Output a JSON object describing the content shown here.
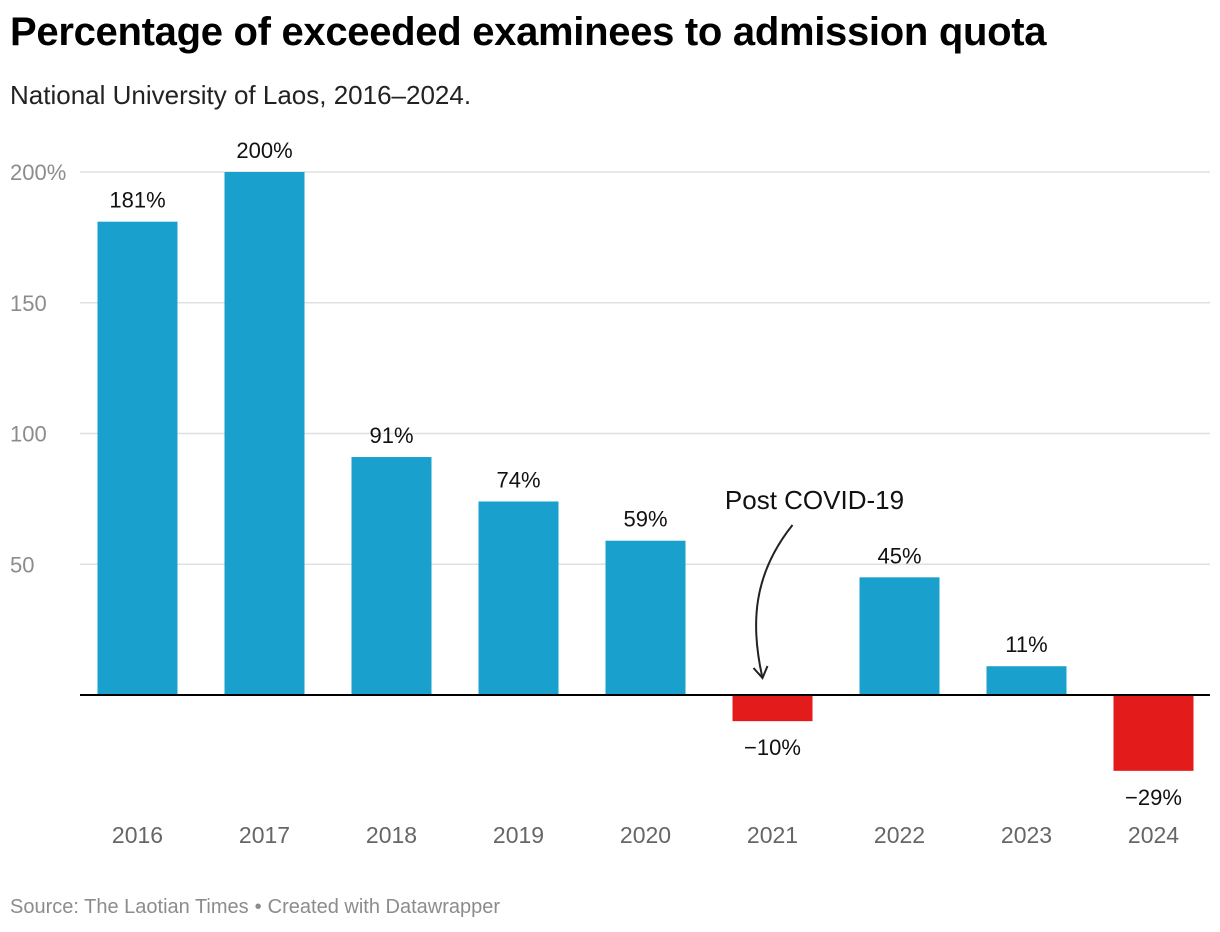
{
  "header": {
    "title": "Percentage of exceeded examinees to admission quota",
    "subtitle": "National University of Laos, 2016–2024."
  },
  "footer": {
    "source": "Source: The Laotian Times",
    "separator": "•",
    "credit": "Created with Datawrapper"
  },
  "colors": {
    "positive": "#1aa0cc",
    "negative": "#e31b1b",
    "grid": "#e0e0e0",
    "axis_text": "#8c8c8c",
    "baseline": "#000000"
  },
  "chart_data": {
    "type": "bar",
    "title": "Percentage of exceeded examinees to admission quota",
    "subtitle": "National University of Laos, 2016–2024.",
    "categories": [
      "2016",
      "2017",
      "2018",
      "2019",
      "2020",
      "2021",
      "2022",
      "2023",
      "2024"
    ],
    "values": [
      181,
      200,
      91,
      74,
      59,
      -10,
      45,
      11,
      -29
    ],
    "value_labels": [
      "181%",
      "200%",
      "91%",
      "74%",
      "59%",
      "−10%",
      "45%",
      "11%",
      "−29%"
    ],
    "ylim": [
      -29,
      200
    ],
    "yticks": [
      50,
      100,
      150,
      200
    ],
    "ytick_labels": [
      "50",
      "100",
      "150",
      "200%"
    ],
    "grid": true,
    "xlabel": "",
    "ylabel": "",
    "annotations": [
      {
        "text": "Post COVID-19",
        "target": "2021"
      }
    ]
  }
}
